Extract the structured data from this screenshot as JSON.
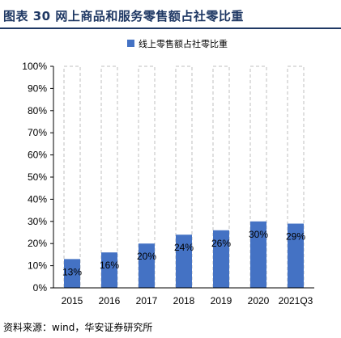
{
  "figure": {
    "title": "图表 30  网上商品和服务零售额占社零比重",
    "source": "资料来源：wind，华安证券研究所"
  },
  "chart_data": {
    "type": "bar",
    "title": "",
    "xlabel": "",
    "ylabel": "",
    "categories": [
      "2015",
      "2016",
      "2017",
      "2018",
      "2019",
      "2020",
      "2021Q3"
    ],
    "series": [
      {
        "name": "线上零售额占社零比重",
        "values": [
          13,
          16,
          20,
          24,
          26,
          30,
          29
        ],
        "labels": [
          "13%",
          "16%",
          "20%",
          "24%",
          "26%",
          "30%",
          "29%"
        ],
        "color": "#4472c4"
      }
    ],
    "background_bar": {
      "value": 100,
      "style": "dashed-outline",
      "color": "#bfbfbf"
    },
    "ylim": [
      0,
      100
    ],
    "yticks": [
      0,
      10,
      20,
      30,
      40,
      50,
      60,
      70,
      80,
      90,
      100
    ],
    "ytick_labels": [
      "0%",
      "10%",
      "20%",
      "30%",
      "40%",
      "50%",
      "60%",
      "70%",
      "80%",
      "90%",
      "100%"
    ],
    "grid": false,
    "legend_position": "top-center"
  }
}
